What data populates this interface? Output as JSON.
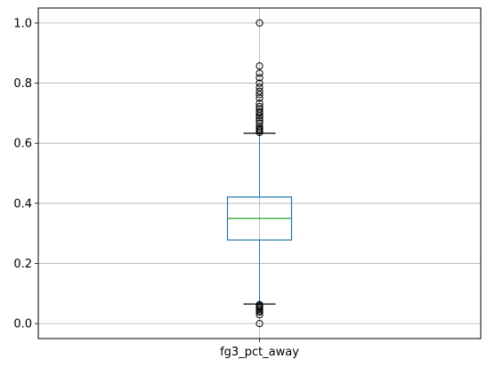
{
  "chart_data": {
    "type": "box",
    "title": "",
    "xlabel": "",
    "ylabel": "",
    "categories": [
      "fg3_pct_away"
    ],
    "ylim": [
      -0.05,
      1.05
    ],
    "y_ticks": [
      0.0,
      0.2,
      0.4,
      0.6,
      0.8,
      1.0
    ],
    "y_tick_labels": [
      "0.0",
      "0.2",
      "0.4",
      "0.6",
      "0.8",
      "1.0"
    ],
    "grid": true,
    "boxes": [
      {
        "name": "fg3_pct_away",
        "whisker_low": 0.065,
        "q1": 0.278,
        "median": 0.35,
        "q3": 0.421,
        "whisker_high": 0.633,
        "outliers_high": [
          0.636,
          0.641,
          0.645,
          0.65,
          0.656,
          0.667,
          0.676,
          0.684,
          0.692,
          0.7,
          0.706,
          0.714,
          0.722,
          0.733,
          0.75,
          0.762,
          0.773,
          0.786,
          0.8,
          0.818,
          0.833,
          0.857,
          1.0
        ],
        "outliers_low": [
          0.0,
          0.029,
          0.038,
          0.043,
          0.048,
          0.053,
          0.056,
          0.059,
          0.063
        ]
      }
    ],
    "colors": {
      "box": "#1f77b4",
      "median": "#2ca02c",
      "whisker": "#1f77b4",
      "cap": "#000000",
      "grid": "#b0b0b0",
      "outlier": "#000000"
    }
  }
}
